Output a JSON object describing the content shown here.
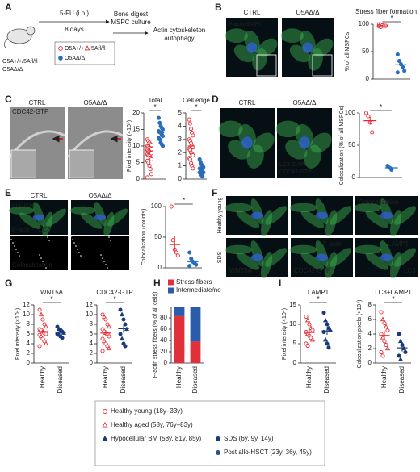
{
  "panel_letters": [
    "A",
    "B",
    "C",
    "D",
    "E",
    "F",
    "G",
    "H",
    "I"
  ],
  "panel_a": {
    "treatment": "5-FU (i.p.)",
    "duration": "8 days",
    "step1": [
      "Bone digest",
      "MSPC culture"
    ],
    "step2": [
      "Actin cytoskeleton",
      "autophagy"
    ],
    "mice": [
      "O5A+/+/5Afl/fl",
      "O5AΔ/Δ"
    ],
    "legend": [
      "O5A+/+",
      "5Afl/fl",
      "O5AΔ/Δ"
    ]
  },
  "image_labels": {
    "B": [
      "CTRL",
      "O5AΔ/Δ",
      "F-actin",
      "DAPI"
    ],
    "C": [
      "CTRL",
      "O5AΔ/Δ",
      "CDC42-GTP"
    ],
    "D": [
      "CTRL",
      "O5AΔ/Δ",
      "LC3",
      "DAPI",
      "CDC42-GTP"
    ],
    "E": [
      "CTRL",
      "O5AΔ/Δ",
      "nucleus",
      "F-actin",
      "LC3",
      "Colocalization"
    ],
    "F": [
      "Healthy young",
      "SDS",
      "Colocalization",
      "F-actin",
      "LAMP1",
      "WNT5A",
      "CDC42-GTP",
      "LC3"
    ]
  },
  "chart_data": [
    {
      "type": "dot",
      "title": "Stress fiber formation",
      "ylabel": "% of all MSPCs",
      "ylim": [
        0,
        100
      ],
      "yticks": [
        0,
        50,
        100
      ],
      "annotation": "*",
      "groups": [
        {
          "color": "#e8262f",
          "marker": "o",
          "values": [
            100,
            99,
            98,
            97,
            97,
            96,
            95
          ],
          "mean": 97,
          "sem": 0.7
        },
        {
          "color": "#2a6ebb",
          "marker": "c",
          "values": [
            45,
            33,
            27,
            22,
            15,
            12
          ],
          "mean": 26,
          "sem": 5
        }
      ]
    },
    {
      "type": "dot",
      "title": "Total",
      "ylabel": "Pixel intensity (×10⁵)",
      "ylim": [
        0,
        20
      ],
      "yticks": [
        0,
        5,
        10,
        15,
        20
      ],
      "annotation": "*",
      "groups": [
        {
          "color": "#e8262f",
          "marker": "o",
          "values": [
            12,
            11.5,
            11,
            10.5,
            10.2,
            10,
            9.8,
            9.5,
            9.3,
            9,
            8.8,
            8.5,
            8.3,
            8,
            7.8,
            7.5,
            7.2,
            7,
            6.5,
            6,
            5.5,
            5,
            4,
            3,
            1.5,
            0.5
          ],
          "mean": 8.2,
          "sem": 0.6
        },
        {
          "color": "#2a6ebb",
          "marker": "c",
          "values": [
            18.5,
            17,
            16,
            15.5,
            15,
            14.5,
            14.2,
            14,
            13.5,
            13,
            12.5,
            12,
            11,
            10.5,
            10
          ],
          "mean": 14,
          "sem": 0.6
        }
      ]
    },
    {
      "type": "dot",
      "title": "Cell edge",
      "ylim": [
        0,
        5
      ],
      "yticks": [
        0,
        1,
        2,
        3,
        4,
        5
      ],
      "annotation": "*",
      "groups": [
        {
          "color": "#e8262f",
          "marker": "o",
          "values": [
            4.5,
            4.2,
            3.8,
            3.5,
            3.3,
            3,
            2.9,
            2.7,
            2.5,
            2.4,
            2.3,
            2.2,
            2,
            1.9,
            1.8,
            1.6,
            1.5,
            1.2,
            1,
            0.8
          ],
          "mean": 2.5,
          "sem": 0.2
        },
        {
          "color": "#2a6ebb",
          "marker": "c",
          "values": [
            1.5,
            1.3,
            1.1,
            1,
            0.9,
            0.8,
            0.8,
            0.7,
            0.6,
            0.5,
            0.5,
            0.4,
            0.3,
            0.2
          ],
          "mean": 0.8,
          "sem": 0.1
        }
      ]
    },
    {
      "type": "dot",
      "ylabel": "Colocalization (% of all MSPCs)",
      "ylim": [
        0,
        100
      ],
      "yticks": [
        0,
        50,
        100
      ],
      "annotation": "*",
      "groups": [
        {
          "color": "#e8262f",
          "marker": "o",
          "values": [
            100,
            95,
            85,
            70
          ],
          "mean": 88,
          "sem": 6
        },
        {
          "color": "#2a6ebb",
          "marker": "c",
          "values": [
            18,
            15,
            12
          ],
          "mean": 15,
          "sem": 2
        }
      ]
    },
    {
      "type": "dot",
      "ylabel": "Colocalization (counts)",
      "ylim": [
        0,
        100
      ],
      "yticks": [
        0,
        50,
        100
      ],
      "annotation": "*",
      "groups": [
        {
          "color": "#e8262f",
          "marker": "o",
          "values": [
            100,
            45,
            30,
            25,
            20
          ],
          "mean": 38,
          "sem": 14
        },
        {
          "color": "#2a6ebb",
          "marker": "c",
          "values": [
            25,
            15,
            10,
            8,
            5,
            3
          ],
          "mean": 10,
          "sem": 4
        }
      ]
    },
    {
      "type": "dot",
      "title": "WNT5A",
      "ylabel": "Pixel intensity (×10⁴)",
      "categories": [
        "Healthy",
        "Diseased"
      ],
      "ylim": [
        0,
        12
      ],
      "yticks": [
        0,
        2,
        4,
        6,
        8,
        10,
        12
      ],
      "annotation": "*",
      "groups": [
        {
          "color": "#e8262f",
          "values": [
            11,
            10,
            9,
            8,
            7.5,
            7,
            6.8,
            6.5,
            6.2,
            6,
            5.8,
            5.5,
            5,
            4.5,
            4,
            3.5
          ],
          "markers": [
            "o",
            "^",
            "o",
            "o",
            "^",
            "o",
            "o",
            "^",
            "o",
            "o",
            "o",
            "^",
            "o",
            "o",
            "^",
            "o"
          ],
          "mean": 6.5,
          "sem": 0.5
        },
        {
          "color": "#1b3a7a",
          "values": [
            7.5,
            7,
            6.8,
            6.5,
            6.2,
            6,
            5.8,
            5.5,
            5.2
          ],
          "markers": [
            "c",
            "t",
            "c",
            "c",
            "t",
            "c",
            "t",
            "c",
            "c"
          ],
          "mean": 6.3,
          "sem": 0.3
        }
      ]
    },
    {
      "type": "dot",
      "title": "CDC42-GTP",
      "categories": [
        "Healthy",
        "Diseased"
      ],
      "ylim": [
        0,
        12
      ],
      "yticks": [
        0,
        2,
        4,
        6,
        8,
        10,
        12
      ],
      "annotation": "*",
      "groups": [
        {
          "color": "#e8262f",
          "values": [
            10,
            9.5,
            9,
            8,
            7.5,
            7,
            6.5,
            6.2,
            6,
            5.5,
            5,
            4.5,
            4,
            3.5,
            3,
            2.5
          ],
          "markers": [
            "o",
            "^",
            "o",
            "o",
            "^",
            "o",
            "o",
            "^",
            "o",
            "o",
            "o",
            "^",
            "o",
            "o",
            "^",
            "o"
          ],
          "mean": 6.2,
          "sem": 0.6
        },
        {
          "color": "#1b3a7a",
          "values": [
            11,
            10,
            9,
            8,
            7,
            6,
            5,
            4,
            3.5
          ],
          "markers": [
            "c",
            "t",
            "c",
            "c",
            "t",
            "c",
            "t",
            "c",
            "c"
          ],
          "mean": 7.1,
          "sem": 0.9
        }
      ]
    },
    {
      "type": "stacked_bar",
      "ylabel": "F-actin stress fibers (% of all cells)",
      "categories": [
        "Healthy",
        "Diseased"
      ],
      "ylim": [
        0,
        100
      ],
      "yticks": [
        0,
        20,
        40,
        60,
        80
      ],
      "series": [
        {
          "name": "Stress fibers",
          "color": "#e0303a",
          "values": [
            83,
            38
          ]
        },
        {
          "name": "Intermediate/no",
          "color": "#2a5caa",
          "values": [
            17,
            62
          ]
        }
      ]
    },
    {
      "type": "dot",
      "title": "LAMP1",
      "ylabel": "Pixel intensity (×10⁴)",
      "categories": [
        "Healthy",
        "Diseased"
      ],
      "ylim": [
        0,
        15
      ],
      "yticks": [
        0,
        5,
        10,
        15
      ],
      "annotation": "*",
      "groups": [
        {
          "color": "#e8262f",
          "values": [
            12,
            11,
            10,
            9,
            8.5,
            8,
            7.5,
            7,
            6.5,
            6,
            5,
            4.5
          ],
          "markers": [
            "o",
            "^",
            "o",
            "^",
            "o",
            "o",
            "^",
            "o",
            "o",
            "^",
            "o",
            "o"
          ],
          "mean": 7.9,
          "sem": 0.7
        },
        {
          "color": "#1b3a7a",
          "values": [
            13,
            11,
            10,
            9,
            8.5,
            8,
            6,
            5,
            4
          ],
          "markers": [
            "c",
            "t",
            "c",
            "c",
            "t",
            "c",
            "t",
            "c",
            "c"
          ],
          "mean": 8.3,
          "sem": 1
        }
      ]
    },
    {
      "type": "dot",
      "title": "LC3+LAMP1",
      "ylabel": "Colocalization pixels (×10⁴)",
      "categories": [
        "Healthy",
        "Diseased"
      ],
      "ylim": [
        0,
        8
      ],
      "yticks": [
        0,
        2,
        4,
        6,
        8
      ],
      "annotation": "*",
      "groups": [
        {
          "color": "#e8262f",
          "values": [
            7,
            6,
            5.5,
            5,
            4.5,
            4,
            3.5,
            3,
            2.5,
            2,
            1.5,
            1
          ],
          "markers": [
            "o",
            "^",
            "o",
            "^",
            "o",
            "o",
            "^",
            "o",
            "o",
            "^",
            "o",
            "o"
          ],
          "mean": 3.8,
          "sem": 0.6
        },
        {
          "color": "#1b3a7a",
          "values": [
            4,
            3,
            2.5,
            2,
            1.5,
            1,
            0.5
          ],
          "markers": [
            "c",
            "t",
            "c",
            "t",
            "c",
            "c",
            "t"
          ],
          "mean": 2.1,
          "sem": 0.5
        }
      ]
    }
  ],
  "legend": [
    "Healthy young (18y–33y)",
    "Healthy aged (58y, 76y–83y)",
    "Hypocellular BM (58y, 81y, 85y)",
    "SDS (6y, 9y, 14y)",
    "Post allo-HSCT (23y, 36y, 45y)"
  ]
}
